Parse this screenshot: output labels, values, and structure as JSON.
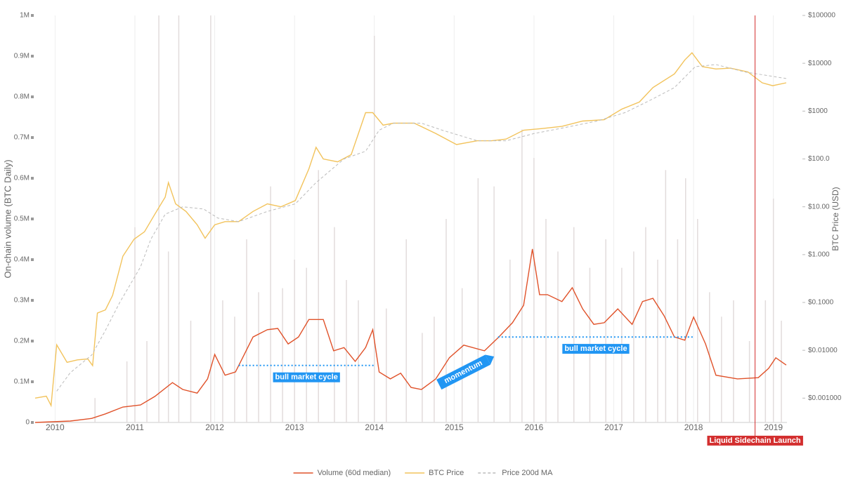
{
  "chart_data": {
    "type": "line",
    "ylabel": "On-chain volume (BTC Daily)",
    "y2label": "BTC Price (USD)",
    "xlim": [
      2009.75,
      2019.17
    ],
    "xticks": [
      2010,
      2011,
      2012,
      2013,
      2014,
      2015,
      2016,
      2017,
      2018,
      2019
    ],
    "ylim": [
      0,
      1000000
    ],
    "yticks": [
      0,
      {
        "value": 100000,
        "label": "0.1M"
      },
      {
        "value": 200000,
        "label": "0.2M"
      },
      {
        "value": 300000,
        "label": "0.3M"
      },
      {
        "value": 400000,
        "label": "0.4M"
      },
      {
        "value": 500000,
        "label": "0.5M"
      },
      {
        "value": 600000,
        "label": "0.6M"
      },
      {
        "value": 700000,
        "label": "0.7M"
      },
      {
        "value": 800000,
        "label": "0.8M"
      },
      {
        "value": 900000,
        "label": "0.9M"
      },
      {
        "value": 1000000,
        "label": "1M"
      }
    ],
    "y2lim": [
      0.00031,
      100000
    ],
    "y2log": true,
    "y2ticks": [
      {
        "value": 0.001,
        "label": "$0.001000"
      },
      {
        "value": 0.01,
        "label": "$0.01000"
      },
      {
        "value": 0.1,
        "label": "$0.1000"
      },
      {
        "value": 1,
        "label": "$1.000"
      },
      {
        "value": 10,
        "label": "$10.00"
      },
      {
        "value": 100,
        "label": "$100.0"
      },
      {
        "value": 1000,
        "label": "$1000"
      },
      {
        "value": 10000,
        "label": "$10000"
      },
      {
        "value": 100000,
        "label": "$100000"
      }
    ],
    "xgrid": true,
    "legend": "bottom",
    "daily_volume": {
      "color": "#e2dcdc",
      "x": [
        2010.5,
        2010.9,
        2011.0,
        2011.15,
        2011.3,
        2011.42,
        2011.55,
        2011.7,
        2011.95,
        2012.1,
        2012.25,
        2012.4,
        2012.55,
        2012.7,
        2012.85,
        2013.0,
        2013.15,
        2013.3,
        2013.5,
        2013.65,
        2013.8,
        2014.0,
        2014.15,
        2014.4,
        2014.6,
        2014.75,
        2014.9,
        2015.1,
        2015.3,
        2015.5,
        2015.7,
        2015.85,
        2016.0,
        2016.15,
        2016.3,
        2016.5,
        2016.7,
        2016.9,
        2017.1,
        2017.25,
        2017.4,
        2017.55,
        2017.65,
        2017.8,
        2017.9,
        2018.05,
        2018.2,
        2018.35,
        2018.5,
        2018.7,
        2018.9,
        2019.0,
        2019.1
      ],
      "values": [
        60000,
        150000,
        480000,
        200000,
        1000000,
        420000,
        1000000,
        250000,
        1000000,
        300000,
        260000,
        450000,
        320000,
        580000,
        330000,
        400000,
        380000,
        620000,
        480000,
        350000,
        300000,
        950000,
        280000,
        450000,
        220000,
        260000,
        500000,
        330000,
        600000,
        580000,
        400000,
        720000,
        650000,
        500000,
        420000,
        480000,
        380000,
        450000,
        380000,
        420000,
        480000,
        400000,
        620000,
        450000,
        600000,
        500000,
        320000,
        260000,
        300000,
        200000,
        300000,
        550000,
        250000
      ]
    },
    "series": [
      {
        "name": "Volume (60d median)",
        "color": "#e0522a",
        "x": [
          2009.75,
          2010.19,
          2010.46,
          2010.63,
          2010.85,
          2011.07,
          2011.25,
          2011.47,
          2011.6,
          2011.78,
          2011.91,
          2012.0,
          2012.13,
          2012.26,
          2012.35,
          2012.48,
          2012.66,
          2012.79,
          2012.92,
          2013.05,
          2013.18,
          2013.36,
          2013.49,
          2013.62,
          2013.76,
          2013.89,
          2013.98,
          2014.06,
          2014.2,
          2014.33,
          2014.46,
          2014.59,
          2014.77,
          2014.94,
          2015.12,
          2015.38,
          2015.56,
          2015.73,
          2015.87,
          2015.98,
          2016.07,
          2016.17,
          2016.35,
          2016.48,
          2016.61,
          2016.75,
          2016.88,
          2017.05,
          2017.23,
          2017.36,
          2017.49,
          2017.63,
          2017.76,
          2017.89,
          2018.0,
          2018.15,
          2018.28,
          2018.55,
          2018.81,
          2018.94,
          2019.03,
          2019.16
        ],
        "values": [
          0,
          3400,
          10000,
          21000,
          38000,
          43000,
          64000,
          98000,
          81000,
          72000,
          107000,
          167000,
          116000,
          124000,
          159000,
          210000,
          228000,
          231000,
          193000,
          210000,
          253000,
          253000,
          176000,
          184000,
          150000,
          184000,
          228000,
          124000,
          107000,
          121000,
          86000,
          81000,
          107000,
          159000,
          190000,
          176000,
          210000,
          245000,
          288000,
          426000,
          314000,
          314000,
          297000,
          331000,
          279000,
          241000,
          245000,
          279000,
          241000,
          297000,
          305000,
          262000,
          210000,
          202000,
          259000,
          193000,
          116000,
          107000,
          110000,
          133000,
          159000,
          141000
        ]
      },
      {
        "name": "BTC Price",
        "color": "#f2c35c",
        "axis": "y2",
        "x": [
          2009.75,
          2009.89,
          2009.95,
          2010.02,
          2010.15,
          2010.28,
          2010.41,
          2010.47,
          2010.53,
          2010.63,
          2010.72,
          2010.85,
          2010.99,
          2011.12,
          2011.25,
          2011.38,
          2011.42,
          2011.51,
          2011.64,
          2011.78,
          2011.88,
          2012.0,
          2012.13,
          2012.3,
          2012.48,
          2012.66,
          2012.83,
          2013.01,
          2013.18,
          2013.27,
          2013.36,
          2013.54,
          2013.71,
          2013.89,
          2013.98,
          2014.11,
          2014.24,
          2014.5,
          2014.77,
          2015.03,
          2015.29,
          2015.47,
          2015.65,
          2015.87,
          2016.09,
          2016.35,
          2016.61,
          2016.88,
          2017.1,
          2017.32,
          2017.49,
          2017.76,
          2017.89,
          2017.98,
          2018.11,
          2018.28,
          2018.46,
          2018.68,
          2018.86,
          2018.99,
          2019.16
        ],
        "values": [
          0.001,
          0.0011,
          0.0007,
          0.013,
          0.0056,
          0.0063,
          0.0066,
          0.0048,
          0.06,
          0.07,
          0.14,
          0.93,
          2.1,
          3,
          7,
          16,
          32,
          11.5,
          8,
          4.2,
          2.2,
          4.2,
          4.9,
          4.9,
          8,
          11.5,
          10,
          13.5,
          62,
          175,
          100,
          87,
          123,
          930,
          930,
          510,
          560,
          560,
          340,
          200,
          240,
          240,
          260,
          400,
          430,
          480,
          620,
          660,
          1100,
          1550,
          3100,
          6000,
          11750,
          16600,
          8500,
          7600,
          7900,
          6600,
          3900,
          3400,
          3900
        ]
      },
      {
        "name": "Price 200d MA",
        "color": "#bbbbbb",
        "axis": "y2",
        "dashed": true,
        "x": [
          2010.02,
          2010.19,
          2010.46,
          2010.63,
          2010.81,
          2011.07,
          2011.2,
          2011.38,
          2011.6,
          2011.86,
          2012.04,
          2012.3,
          2012.66,
          2013.01,
          2013.27,
          2013.62,
          2013.89,
          2014.06,
          2014.24,
          2014.59,
          2014.85,
          2015.29,
          2015.65,
          2016.0,
          2016.35,
          2016.79,
          2017.14,
          2017.49,
          2017.76,
          2018.02,
          2018.28,
          2018.64,
          2019.16
        ],
        "values": [
          0.0014,
          0.0034,
          0.008,
          0.026,
          0.1,
          0.55,
          2.1,
          7,
          10,
          9,
          5.8,
          4.9,
          8,
          11.5,
          32,
          100,
          145,
          400,
          560,
          560,
          400,
          240,
          240,
          340,
          440,
          620,
          930,
          1800,
          3100,
          8500,
          9400,
          6600,
          4800
        ]
      }
    ],
    "cycle_annotations": [
      {
        "text": "bull market cycle",
        "x": [
          2012.3,
          2014.0
        ],
        "y": 140000
      },
      {
        "text": "bull market cycle",
        "x": [
          2015.55,
          2018.0
        ],
        "y": 210000
      }
    ],
    "arrow_annotation": {
      "text": "momentum",
      "x": [
        2014.81,
        2015.5
      ],
      "y": [
        93000,
        162000
      ]
    },
    "event_annotation": {
      "text": "Liquid Sidechain Launch",
      "x": 2018.77,
      "color": "#d32f2f"
    }
  }
}
